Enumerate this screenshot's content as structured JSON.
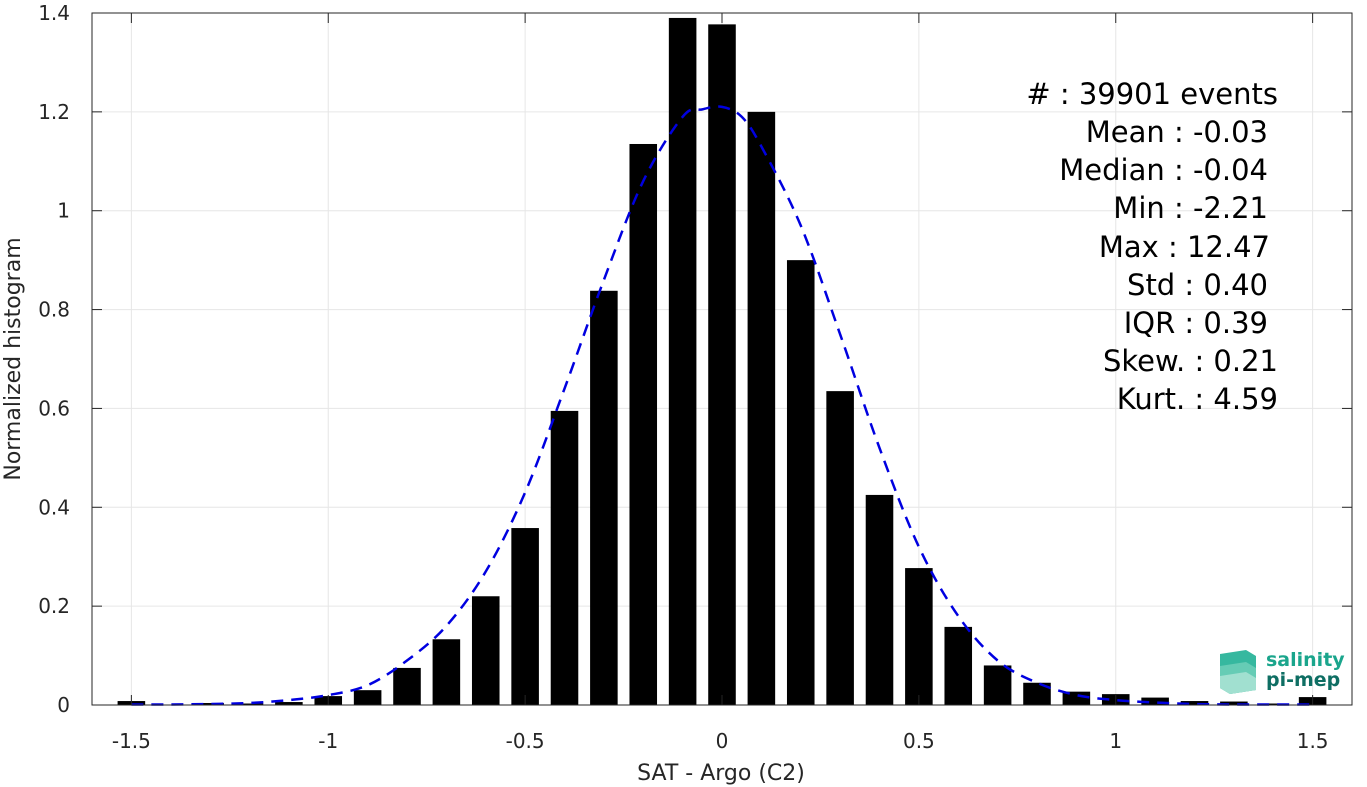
{
  "chart_data": {
    "type": "bar",
    "xlabel": "SAT - Argo (C2)",
    "ylabel": "Normalized histogram",
    "xlim": [
      -1.6,
      1.6
    ],
    "ylim": [
      0,
      1.4
    ],
    "xticks": [
      -1.5,
      -1,
      -0.5,
      0,
      0.5,
      1,
      1.5
    ],
    "xtick_labels": [
      "-1.5",
      "-1",
      "-0.5",
      "0",
      "0.5",
      "1",
      "1.5"
    ],
    "yticks": [
      0,
      0.2,
      0.4,
      0.6,
      0.8,
      1,
      1.2,
      1.4
    ],
    "ytick_labels": [
      "0",
      "0.2",
      "0.4",
      "0.6",
      "0.8",
      "1",
      "1.2",
      "1.4"
    ],
    "grid": true,
    "bar_width": 0.07,
    "series": [
      {
        "kind": "histogram",
        "x": [
          -1.5,
          -1.4,
          -1.3,
          -1.2,
          -1.1,
          -1.0,
          -0.9,
          -0.8,
          -0.7,
          -0.6,
          -0.5,
          -0.4,
          -0.3,
          -0.2,
          -0.1,
          0.0,
          0.1,
          0.2,
          0.3,
          0.4,
          0.5,
          0.6,
          0.7,
          0.8,
          0.9,
          1.0,
          1.1,
          1.2,
          1.3,
          1.4,
          1.5
        ],
        "values": [
          0.008,
          0.001,
          0.004,
          0.003,
          0.006,
          0.018,
          0.03,
          0.075,
          0.133,
          0.22,
          0.358,
          0.595,
          0.838,
          1.135,
          1.39,
          1.377,
          1.2,
          0.9,
          0.635,
          0.425,
          0.277,
          0.158,
          0.08,
          0.045,
          0.027,
          0.022,
          0.015,
          0.008,
          0.007,
          0.003,
          0.016
        ],
        "color": "#000000"
      },
      {
        "kind": "fit",
        "style": "dashed",
        "color": "#0000e0",
        "x": [
          -1.5,
          -1.4,
          -1.3,
          -1.2,
          -1.1,
          -1.0,
          -0.9,
          -0.8,
          -0.7,
          -0.6,
          -0.5,
          -0.4,
          -0.3,
          -0.2,
          -0.1,
          -0.05,
          0.0,
          0.05,
          0.1,
          0.2,
          0.3,
          0.4,
          0.5,
          0.6,
          0.7,
          0.8,
          0.9,
          1.0,
          1.1,
          1.2,
          1.3,
          1.4,
          1.5
        ],
        "values": [
          0.001,
          0.001,
          0.002,
          0.004,
          0.01,
          0.02,
          0.04,
          0.09,
          0.16,
          0.27,
          0.43,
          0.64,
          0.86,
          1.06,
          1.19,
          1.205,
          1.21,
          1.19,
          1.13,
          0.97,
          0.75,
          0.52,
          0.32,
          0.18,
          0.09,
          0.045,
          0.02,
          0.01,
          0.005,
          0.002,
          0.001,
          0.001,
          0.001
        ]
      }
    ]
  },
  "stats": [
    {
      "label": "#  ",
      "value": "39901 events"
    },
    {
      "label": "Mean",
      "value": "-0.03"
    },
    {
      "label": "Median",
      "value": "-0.04"
    },
    {
      "label": "Min",
      "value": "-2.21"
    },
    {
      "label": "Max",
      "value": "12.47"
    },
    {
      "label": "Std",
      "value": "0.40"
    },
    {
      "label": "IQR",
      "value": "0.39"
    },
    {
      "label": "Skew.",
      "value": "0.21"
    },
    {
      "label": "Kurt.",
      "value": "4.59"
    }
  ],
  "logo": {
    "line1": "salinity",
    "line2": "pi-mep",
    "color_main": "#1aa58c",
    "color_dark": "#0e6e63"
  }
}
